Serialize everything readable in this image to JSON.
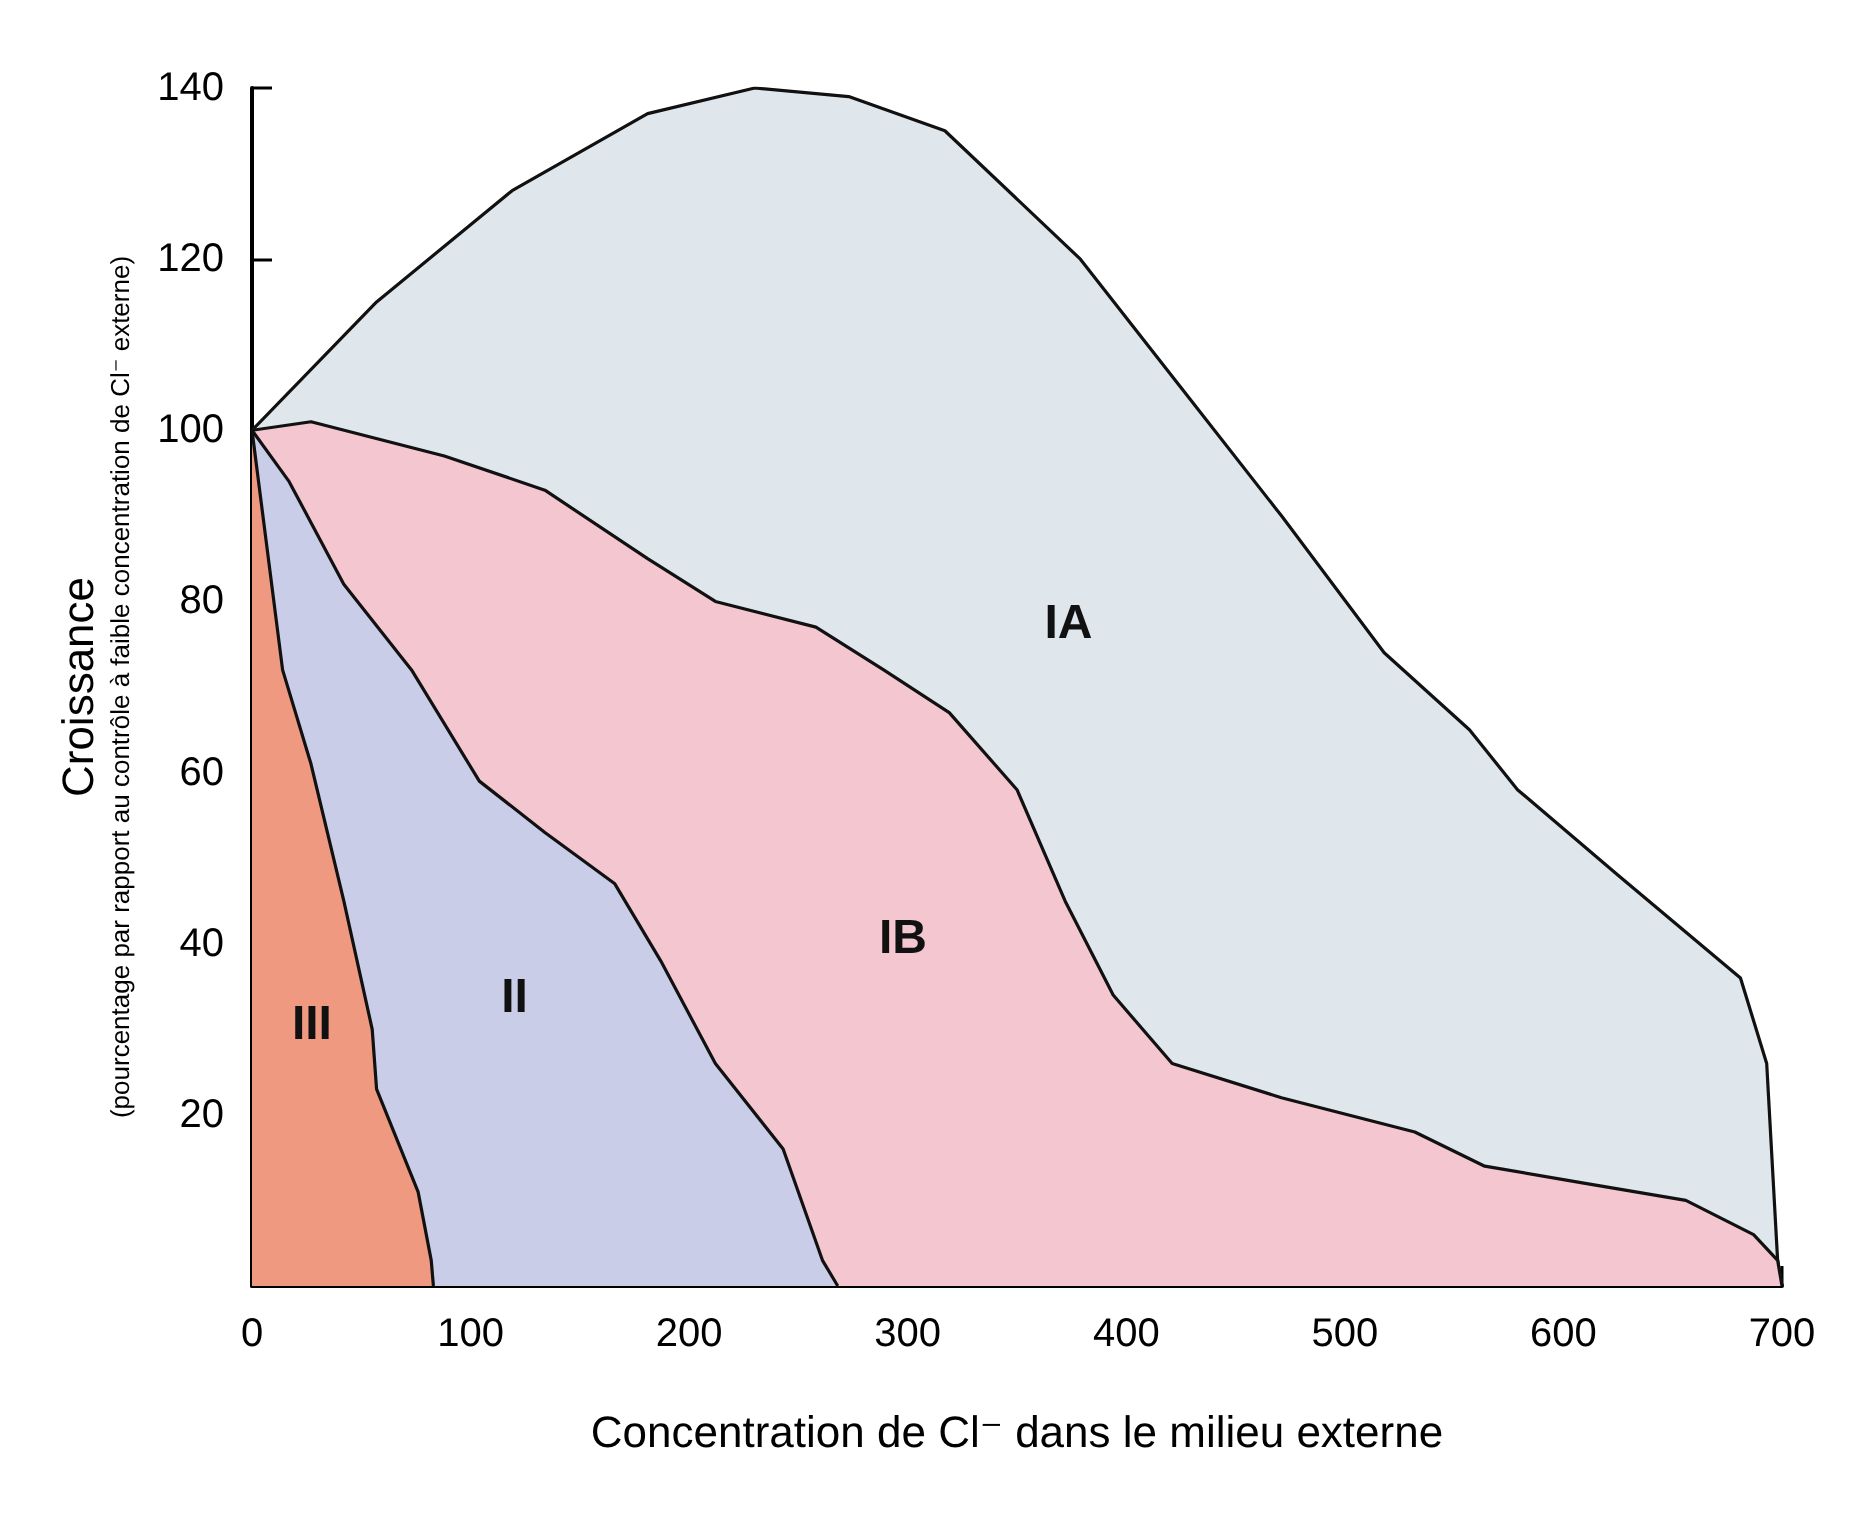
{
  "chart_data": {
    "type": "area",
    "xlabel": "Concentration de Cl⁻ dans le milieu externe",
    "ylabel": "Croissance\n(pourcentage par rapport au contrôle à faible concentration de Cl⁻ externe)",
    "xlim": [
      0,
      700
    ],
    "xticks": [
      0,
      100,
      200,
      300,
      400,
      500,
      600,
      700
    ],
    "ylim": [
      0,
      140
    ],
    "yticks": [
      20,
      40,
      60,
      80,
      100,
      120,
      140
    ],
    "grid": false,
    "legend": false,
    "series": [
      {
        "name": "IA",
        "color": "#dfe6ec",
        "x": [
          0,
          57,
          119,
          181,
          230,
          273,
          317,
          379,
          425,
          471,
          518,
          557,
          579,
          625,
          681,
          693,
          698,
          700
        ],
        "values": [
          100,
          115,
          128,
          137,
          140,
          139,
          135,
          120,
          105,
          90,
          74,
          65,
          58,
          48,
          36,
          26,
          3,
          0
        ]
      },
      {
        "name": "IB",
        "color": "#f4c6d0",
        "x": [
          0,
          27,
          88,
          134,
          181,
          212,
          258,
          289,
          319,
          350,
          372,
          394,
          421,
          471,
          532,
          564,
          610,
          656,
          687,
          698,
          700
        ],
        "values": [
          100,
          101,
          97,
          93,
          85,
          80,
          77,
          72,
          67,
          58,
          45,
          34,
          26,
          22,
          18,
          14,
          12,
          10,
          6,
          3,
          0
        ]
      },
      {
        "name": "II",
        "color": "#c9cde8",
        "x": [
          0,
          17,
          42,
          73,
          104,
          134,
          166,
          187,
          212,
          243,
          261,
          268
        ],
        "values": [
          100,
          94,
          82,
          72,
          59,
          53,
          47,
          38,
          26,
          16,
          3,
          0
        ]
      },
      {
        "name": "III",
        "color": "#ef9a80",
        "x": [
          0,
          14,
          27,
          42,
          55,
          57,
          76,
          82,
          83
        ],
        "values": [
          100,
          72,
          61,
          45,
          30,
          23,
          11,
          3,
          0
        ]
      }
    ]
  }
}
